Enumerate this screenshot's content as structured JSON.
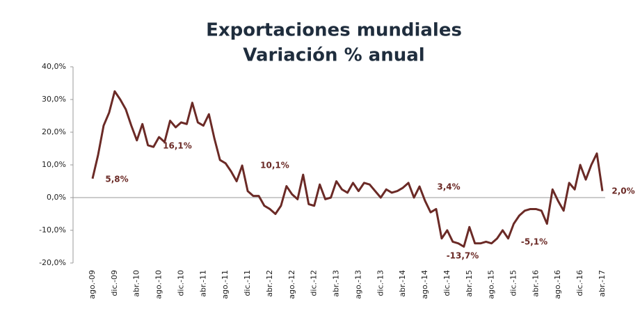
{
  "chart_data": {
    "type": "line",
    "title": [
      "Exportaciones mundiales",
      "Variación % anual"
    ],
    "categories": [
      "ago.-09",
      null,
      null,
      null,
      "dic.-09",
      null,
      null,
      null,
      "abr.-10",
      null,
      null,
      null,
      "ago.-10",
      null,
      null,
      null,
      "dic.-10",
      null,
      null,
      null,
      "abr.-11",
      null,
      null,
      null,
      "ago.-11",
      null,
      null,
      null,
      "dic.-11",
      null,
      null,
      null,
      "abr.-12",
      null,
      null,
      null,
      "ago.-12",
      null,
      null,
      null,
      "dic.-12",
      null,
      null,
      null,
      "abr.-13",
      null,
      null,
      null,
      "ago.-13",
      null,
      null,
      null,
      "dic.-13",
      null,
      null,
      null,
      "abr.-14",
      null,
      null,
      null,
      "ago.-14",
      null,
      null,
      null,
      "dic.-14",
      null,
      null,
      null,
      "abr.-15",
      null,
      null,
      null,
      "ago.-15",
      null,
      null,
      null,
      "dic.-15",
      null,
      null,
      null,
      "abr.-16",
      null,
      null,
      null,
      "ago.-16",
      null,
      null,
      null,
      "dic.-16",
      null,
      null,
      null,
      "abr.-17"
    ],
    "series": [
      {
        "color": "#6b2a26",
        "values": [
          5.8,
          13,
          22,
          26,
          32.5,
          30,
          27,
          22,
          17.5,
          22.5,
          16,
          15.5,
          18.5,
          17,
          23.5,
          21.5,
          23,
          22.5,
          29,
          23,
          22,
          25.5,
          18,
          11.5,
          10.5,
          8,
          5,
          9.8,
          2,
          0.5,
          0.5,
          -2.5,
          -3.5,
          -5,
          -2.5,
          3.5,
          1,
          -0.5,
          7,
          -2,
          -2.5,
          4,
          -0.5,
          0,
          5,
          2.5,
          1.5,
          4.5,
          2,
          4.5,
          4,
          2,
          0,
          2.5,
          1.5,
          2,
          3,
          4.5,
          0,
          3.4,
          -1,
          -4.5,
          -3.5,
          -12.5,
          -10,
          -13.5,
          -14,
          -15,
          -9,
          -14,
          -14,
          -13.5,
          -14,
          -12.5,
          -10,
          -12.5,
          -8,
          -5.5,
          -4,
          -3.5,
          -3.5,
          -4,
          -8,
          2.5,
          -1,
          -4,
          4.5,
          2.5,
          10,
          5.5,
          10,
          13.5,
          2
        ]
      }
    ],
    "annotations": [
      "5,8%",
      "16,1%",
      "10,1%",
      "3,4%",
      "-13,7%",
      "-5,1%",
      "2,0%"
    ],
    "ylim": [
      -20,
      40
    ],
    "yticks": [
      {
        "value": -20,
        "label": "-20,0%"
      },
      {
        "value": -10,
        "label": "-10,0%"
      },
      {
        "value": 0,
        "label": "0,0%"
      },
      {
        "value": 10,
        "label": "10,0%"
      },
      {
        "value": 20,
        "label": "20,0%"
      },
      {
        "value": 30,
        "label": "30,0%"
      },
      {
        "value": 40,
        "label": "40,0%"
      }
    ],
    "grid": false
  }
}
